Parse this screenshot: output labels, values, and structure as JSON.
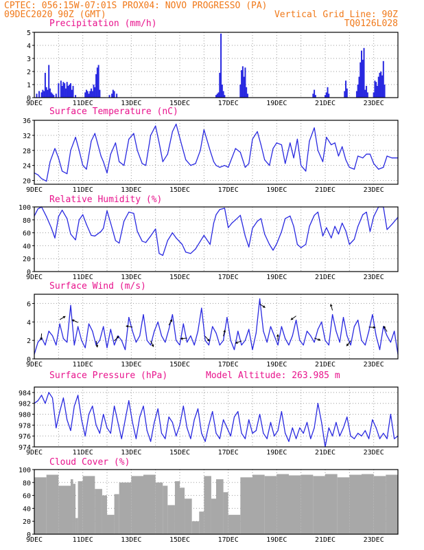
{
  "header": {
    "line1_left": "CPTEC:  056:15W-07:01S   PROX04: NOVO PROGRESSO (PA)",
    "line2_left": "09DEC2020 90Z (GMT)",
    "line2_right": "Vertical Grid Line: 90Z",
    "line3_right": "TQ0126L028"
  },
  "colors": {
    "header": "#f07818",
    "title": "#e8128c",
    "line": "#2828e0",
    "cloud": "#a8a8a8",
    "grid": "#9a9a9a"
  },
  "x_ticks": [
    "9DEC",
    "11DEC",
    "13DEC",
    "15DEC",
    "17DEC",
    "19DEC",
    "21DEC",
    "23DEC"
  ],
  "chart_data": [
    {
      "id": "precip",
      "type": "bar",
      "title": "Precipitation (mm/h)",
      "xlim": [
        0,
        15
      ],
      "ylim": [
        0,
        5
      ],
      "yticks": [
        0,
        1,
        2,
        3,
        4,
        5
      ],
      "x": [
        0.1,
        0.2,
        0.3,
        0.35,
        0.4,
        0.45,
        0.5,
        0.55,
        0.6,
        0.65,
        0.7,
        0.75,
        0.8,
        0.9,
        1.0,
        1.1,
        1.15,
        1.2,
        1.25,
        1.3,
        1.35,
        1.4,
        1.45,
        1.5,
        1.55,
        1.6,
        1.7,
        2.1,
        2.15,
        2.2,
        2.25,
        2.3,
        2.35,
        2.4,
        2.45,
        2.5,
        2.55,
        2.6,
        2.65,
        2.7,
        3.1,
        3.2,
        3.25,
        3.3,
        3.4,
        7.5,
        7.55,
        7.6,
        7.65,
        7.7,
        7.75,
        7.8,
        7.85,
        8.5,
        8.55,
        8.6,
        8.65,
        8.7,
        8.75,
        8.8,
        11.5,
        11.55,
        11.6,
        12.0,
        12.05,
        12.1,
        12.15,
        12.8,
        12.85,
        12.9,
        13.3,
        13.35,
        13.4,
        13.45,
        13.5,
        13.55,
        13.6,
        13.65,
        13.7,
        13.75,
        14.0,
        14.05,
        14.1,
        14.15,
        14.2,
        14.25,
        14.3,
        14.35,
        14.4,
        14.45
      ],
      "values": [
        0.3,
        0.5,
        0.4,
        0.6,
        0.5,
        1.9,
        0.8,
        0.6,
        2.5,
        0.7,
        0.4,
        0.3,
        0.2,
        0.3,
        1.1,
        1.3,
        0.9,
        1.2,
        1.1,
        0.7,
        1.2,
        0.9,
        1.0,
        1.1,
        0.6,
        0.9,
        0.2,
        0.4,
        0.6,
        0.5,
        0.3,
        0.5,
        0.7,
        0.5,
        1.0,
        0.8,
        1.8,
        2.3,
        2.5,
        0.6,
        0.2,
        0.3,
        0.6,
        0.5,
        0.3,
        0.2,
        0.3,
        0.4,
        1.9,
        4.9,
        1.0,
        0.5,
        0.2,
        1.0,
        2.1,
        2.4,
        1.6,
        2.3,
        0.8,
        0.3,
        0.3,
        0.6,
        0.2,
        0.2,
        0.4,
        0.8,
        0.3,
        0.5,
        1.3,
        0.7,
        0.5,
        1.0,
        1.6,
        2.7,
        3.6,
        2.9,
        3.8,
        0.6,
        0.9,
        0.4,
        0.4,
        1.3,
        1.2,
        0.9,
        1.6,
        1.9,
        2.0,
        1.7,
        2.8,
        1.0
      ]
    },
    {
      "id": "temp",
      "type": "line",
      "title": "Surface Temperature (nC)",
      "xlim": [
        0,
        15
      ],
      "ylim": [
        19,
        36
      ],
      "yticks": [
        20,
        24,
        28,
        32,
        36
      ],
      "x": [
        0,
        0.15,
        0.3,
        0.5,
        0.65,
        0.85,
        1.0,
        1.15,
        1.35,
        1.5,
        1.7,
        1.85,
        2.0,
        2.15,
        2.35,
        2.5,
        2.75,
        2.85,
        3.0,
        3.15,
        3.35,
        3.5,
        3.7,
        3.9,
        4.1,
        4.25,
        4.45,
        4.6,
        4.8,
        5.0,
        5.15,
        5.3,
        5.5,
        5.7,
        5.85,
        6.1,
        6.25,
        6.45,
        6.65,
        6.85,
        7.0,
        7.25,
        7.4,
        7.5,
        7.65,
        7.85,
        8.0,
        8.15,
        8.3,
        8.5,
        8.7,
        8.85,
        9.0,
        9.2,
        9.35,
        9.5,
        9.7,
        9.85,
        10.0,
        10.2,
        10.35,
        10.55,
        10.7,
        10.85,
        11.0,
        11.2,
        11.35,
        11.55,
        11.7,
        11.9,
        12.05,
        12.25,
        12.4,
        12.55,
        12.7,
        12.85,
        13.0,
        13.2,
        13.35,
        13.55,
        13.7,
        13.85,
        14.0,
        14.2,
        14.4,
        14.55,
        14.75,
        15.0
      ],
      "values": [
        22.0,
        21.5,
        20.5,
        19.8,
        25.0,
        28.5,
        26.0,
        22.5,
        21.8,
        28.0,
        31.5,
        28.0,
        24.0,
        23.0,
        30.5,
        32.5,
        26.5,
        25.0,
        22.0,
        27.0,
        30.0,
        25.0,
        24.0,
        31.0,
        32.5,
        28.0,
        24.5,
        24.0,
        32.0,
        34.5,
        30.0,
        25.0,
        27.0,
        33.0,
        35.0,
        29.0,
        25.5,
        24.0,
        24.5,
        28.0,
        33.5,
        28.0,
        25.0,
        24.0,
        23.5,
        24.0,
        23.5,
        26.0,
        28.5,
        27.5,
        23.5,
        24.5,
        31.0,
        33.0,
        29.5,
        25.5,
        24.0,
        28.5,
        30.0,
        29.5,
        24.5,
        30.0,
        26.0,
        31.0,
        24.0,
        22.5,
        30.5,
        34.0,
        28.0,
        25.0,
        31.5,
        29.5,
        30.0,
        26.5,
        29.0,
        25.5,
        23.5,
        23.0,
        26.5,
        26.0,
        27.0,
        27.0,
        24.5,
        23.0,
        23.5,
        26.5,
        26.0,
        26.0
      ]
    },
    {
      "id": "rh",
      "type": "line",
      "title": "Relative Humidity (%)",
      "xlim": [
        0,
        15
      ],
      "ylim": [
        0,
        100
      ],
      "yticks": [
        0,
        20,
        40,
        60,
        80,
        100
      ],
      "x": [
        0,
        0.15,
        0.3,
        0.5,
        0.7,
        0.85,
        1.0,
        1.15,
        1.35,
        1.5,
        1.7,
        1.85,
        2.0,
        2.15,
        2.35,
        2.5,
        2.75,
        2.85,
        3.0,
        3.15,
        3.35,
        3.5,
        3.7,
        3.9,
        4.1,
        4.25,
        4.45,
        4.6,
        4.8,
        5.0,
        5.15,
        5.3,
        5.5,
        5.7,
        5.85,
        6.1,
        6.25,
        6.45,
        6.65,
        6.85,
        7.0,
        7.25,
        7.4,
        7.5,
        7.65,
        7.85,
        8.0,
        8.15,
        8.3,
        8.5,
        8.7,
        8.85,
        9.0,
        9.2,
        9.35,
        9.5,
        9.7,
        9.85,
        10.0,
        10.2,
        10.35,
        10.55,
        10.7,
        10.85,
        11.0,
        11.2,
        11.35,
        11.55,
        11.7,
        11.9,
        12.05,
        12.25,
        12.4,
        12.55,
        12.7,
        12.85,
        13.0,
        13.2,
        13.35,
        13.55,
        13.7,
        13.85,
        14.0,
        14.2,
        14.4,
        14.55,
        14.75,
        15.0
      ],
      "values": [
        86,
        97,
        100,
        85,
        68,
        52,
        85,
        95,
        82,
        58,
        49,
        80,
        88,
        73,
        56,
        55,
        62,
        67,
        94,
        75,
        48,
        44,
        78,
        92,
        90,
        62,
        47,
        45,
        55,
        66,
        28,
        25,
        48,
        60,
        52,
        42,
        30,
        28,
        35,
        47,
        56,
        42,
        75,
        88,
        96,
        98,
        68,
        75,
        80,
        87,
        55,
        38,
        67,
        78,
        82,
        58,
        42,
        33,
        43,
        62,
        82,
        86,
        70,
        42,
        37,
        42,
        70,
        87,
        92,
        55,
        68,
        52,
        70,
        58,
        75,
        63,
        42,
        50,
        70,
        88,
        92,
        62,
        85,
        100,
        100,
        65,
        73,
        84
      ]
    },
    {
      "id": "wind",
      "type": "line",
      "title": "Surface Wind (m/s)",
      "xlim": [
        0,
        15
      ],
      "ylim": [
        0,
        7
      ],
      "yticks": [
        0,
        2,
        4,
        6
      ],
      "x": [
        0,
        0.15,
        0.3,
        0.45,
        0.6,
        0.75,
        0.9,
        1.05,
        1.2,
        1.35,
        1.5,
        1.65,
        1.8,
        1.95,
        2.1,
        2.25,
        2.4,
        2.55,
        2.7,
        2.85,
        3.0,
        3.15,
        3.3,
        3.45,
        3.6,
        3.75,
        3.9,
        4.05,
        4.2,
        4.35,
        4.5,
        4.65,
        4.8,
        4.95,
        5.1,
        5.25,
        5.4,
        5.55,
        5.7,
        5.85,
        6.0,
        6.15,
        6.3,
        6.45,
        6.6,
        6.75,
        6.9,
        7.05,
        7.2,
        7.35,
        7.5,
        7.65,
        7.8,
        7.95,
        8.1,
        8.25,
        8.4,
        8.55,
        8.7,
        8.85,
        9.0,
        9.15,
        9.3,
        9.45,
        9.6,
        9.75,
        9.9,
        10.05,
        10.2,
        10.35,
        10.5,
        10.65,
        10.8,
        10.95,
        11.1,
        11.25,
        11.4,
        11.55,
        11.7,
        11.85,
        12.0,
        12.15,
        12.3,
        12.45,
        12.6,
        12.75,
        12.9,
        13.05,
        13.2,
        13.35,
        13.5,
        13.65,
        13.8,
        13.95,
        14.1,
        14.25,
        14.4,
        14.55,
        14.7,
        14.85,
        15.0
      ],
      "values": [
        0.5,
        1.8,
        2.3,
        1.5,
        3.0,
        2.5,
        1.5,
        3.8,
        2.2,
        1.8,
        5.8,
        1.5,
        3.5,
        2.0,
        1.2,
        3.8,
        3.0,
        1.5,
        2.0,
        3.5,
        1.2,
        3.2,
        1.5,
        2.5,
        2.0,
        1.0,
        4.5,
        3.0,
        1.8,
        2.5,
        4.8,
        2.0,
        1.5,
        3.0,
        4.0,
        2.5,
        1.8,
        3.2,
        4.8,
        2.0,
        1.5,
        3.8,
        1.8,
        2.5,
        1.5,
        3.0,
        5.5,
        2.0,
        1.5,
        3.5,
        2.8,
        1.5,
        2.0,
        4.5,
        2.0,
        1.0,
        3.0,
        1.5,
        2.0,
        3.2,
        1.0,
        2.8,
        6.5,
        3.0,
        1.8,
        3.5,
        2.5,
        1.5,
        3.5,
        2.2,
        1.5,
        2.5,
        4.2,
        2.0,
        1.5,
        3.0,
        2.5,
        1.8,
        3.2,
        4.0,
        2.0,
        1.5,
        4.8,
        3.0,
        1.8,
        4.5,
        2.5,
        1.5,
        3.5,
        4.2,
        2.0,
        1.5,
        3.0,
        4.8,
        2.5,
        1.0,
        3.5,
        2.5,
        1.8,
        3.0,
        0.5
      ]
    },
    {
      "id": "pres",
      "type": "line",
      "title": "Surface Pressure (hPa)",
      "annotation": "Model Altitude: 263.985  m",
      "xlim": [
        0,
        15
      ],
      "ylim": [
        974,
        985
      ],
      "yticks": [
        974,
        976,
        978,
        980,
        982,
        984
      ],
      "x": [
        0,
        0.15,
        0.3,
        0.45,
        0.6,
        0.75,
        0.9,
        1.05,
        1.2,
        1.35,
        1.5,
        1.65,
        1.8,
        1.95,
        2.1,
        2.25,
        2.4,
        2.55,
        2.7,
        2.85,
        3.0,
        3.15,
        3.3,
        3.45,
        3.6,
        3.75,
        3.9,
        4.05,
        4.2,
        4.35,
        4.5,
        4.65,
        4.8,
        4.95,
        5.1,
        5.25,
        5.4,
        5.55,
        5.7,
        5.85,
        6.0,
        6.15,
        6.3,
        6.45,
        6.6,
        6.75,
        6.9,
        7.05,
        7.2,
        7.35,
        7.5,
        7.65,
        7.8,
        7.95,
        8.1,
        8.25,
        8.4,
        8.55,
        8.7,
        8.85,
        9.0,
        9.15,
        9.3,
        9.45,
        9.6,
        9.75,
        9.9,
        10.05,
        10.2,
        10.35,
        10.5,
        10.65,
        10.8,
        10.95,
        11.1,
        11.25,
        11.4,
        11.55,
        11.7,
        11.85,
        12.0,
        12.15,
        12.3,
        12.45,
        12.6,
        12.75,
        12.9,
        13.05,
        13.2,
        13.35,
        13.5,
        13.65,
        13.8,
        13.95,
        14.1,
        14.25,
        14.4,
        14.55,
        14.7,
        14.85,
        15.0
      ],
      "values": [
        982.0,
        982.5,
        983.5,
        982.0,
        984.0,
        983.0,
        977.5,
        980.5,
        983.0,
        979.0,
        977.0,
        981.5,
        983.5,
        979.0,
        976.0,
        980.0,
        981.5,
        978.0,
        976.5,
        980.0,
        977.5,
        976.5,
        981.5,
        978.5,
        975.5,
        979.0,
        982.5,
        978.5,
        975.5,
        979.5,
        981.5,
        977.0,
        975.0,
        978.5,
        981.0,
        976.5,
        975.5,
        979.5,
        978.5,
        976.0,
        978.0,
        981.5,
        977.5,
        975.5,
        979.0,
        981.0,
        976.5,
        975.0,
        978.0,
        980.5,
        976.5,
        975.5,
        979.0,
        977.5,
        976.0,
        979.5,
        980.5,
        976.5,
        975.5,
        979.0,
        976.5,
        977.0,
        980.0,
        976.5,
        975.5,
        978.5,
        976.0,
        977.0,
        980.5,
        976.5,
        975.0,
        977.5,
        975.5,
        977.5,
        976.5,
        978.5,
        975.5,
        977.5,
        982.0,
        978.5,
        974.0,
        977.5,
        976.0,
        978.5,
        976.0,
        977.5,
        979.5,
        976.0,
        975.5,
        976.5,
        976.0,
        977.0,
        975.5,
        979.0,
        977.5,
        975.5,
        976.5,
        975.5,
        980.0,
        975.5,
        976.0
      ]
    },
    {
      "id": "cloud",
      "type": "bar",
      "title": "Cloud Cover (%)",
      "xlim": [
        0,
        15
      ],
      "ylim": [
        0,
        100
      ],
      "yticks": [
        0,
        20,
        40,
        60,
        80,
        100
      ],
      "x": [
        0,
        0.5,
        1.0,
        1.5,
        1.6,
        1.7,
        1.8,
        2.0,
        2.5,
        2.8,
        3.0,
        3.3,
        3.5,
        4.0,
        4.5,
        5.0,
        5.3,
        5.5,
        5.8,
        6.0,
        6.2,
        6.5,
        6.8,
        7.0,
        7.3,
        7.5,
        7.8,
        8.0,
        8.5,
        9.0,
        9.5,
        10.0,
        10.5,
        11.0,
        11.5,
        12.0,
        12.5,
        13.0,
        13.5,
        14.0,
        14.5,
        15.0
      ],
      "values": [
        88,
        92,
        75,
        85,
        78,
        25,
        82,
        90,
        70,
        60,
        30,
        62,
        80,
        90,
        92,
        80,
        75,
        45,
        82,
        72,
        55,
        20,
        35,
        90,
        55,
        85,
        65,
        30,
        88,
        92,
        90,
        93,
        91,
        92,
        90,
        93,
        88,
        92,
        93,
        90,
        92,
        90
      ]
    }
  ]
}
